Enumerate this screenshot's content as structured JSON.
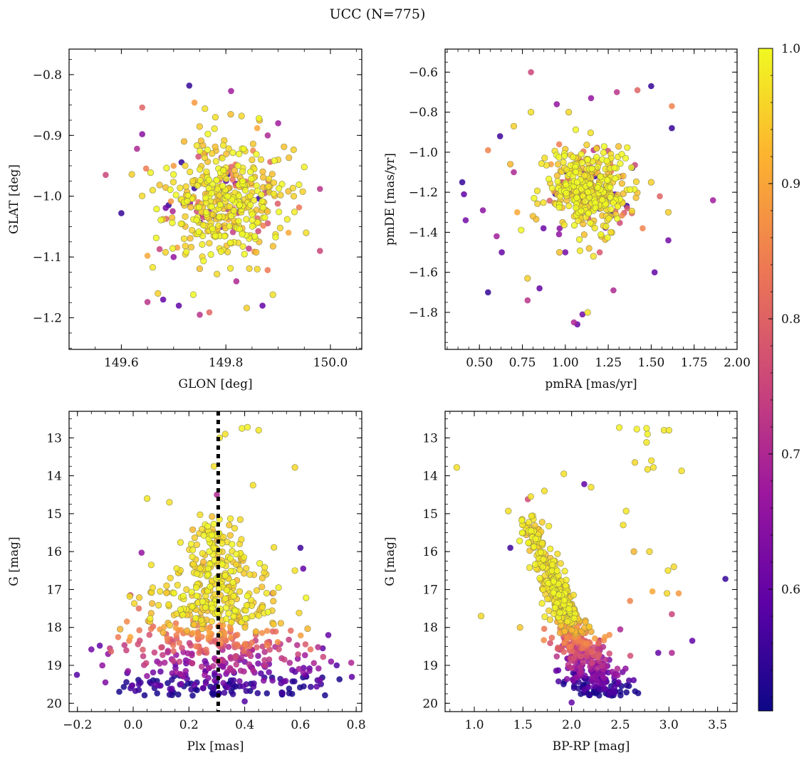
{
  "figure": {
    "title": "UCC (N=775)"
  },
  "colorbar": {
    "range": [
      0.51,
      1.0
    ],
    "ticks": [
      0.6,
      0.7,
      0.8,
      0.9,
      1.0
    ],
    "tick_labels": [
      "0.6",
      "0.7",
      "0.8",
      "0.9",
      "1.0"
    ],
    "colormap": "plasma",
    "colors": [
      "#0d0887",
      "#5c01a6",
      "#9c179e",
      "#cc4778",
      "#ed7953",
      "#fdb42f",
      "#f0f921"
    ]
  },
  "chart_data": [
    {
      "type": "scatter",
      "xlabel": "GLON [deg]",
      "ylabel": "GLAT [deg]",
      "xlim": [
        149.5,
        150.06
      ],
      "ylim": [
        -1.252,
        -0.758
      ],
      "y_inverted": false,
      "xticks": [
        149.6,
        149.8,
        150.0
      ],
      "xtick_labels": [
        "149.6",
        "149.8",
        "150.0"
      ],
      "yticks": [
        -1.2,
        -1.1,
        -1.0,
        -0.9,
        -0.8
      ],
      "ytick_labels": [
        "−1.2",
        "−1.1",
        "−1.0",
        "−0.9",
        "−0.8"
      ],
      "points": [
        [
          149.57,
          -0.965,
          0.75
        ],
        [
          149.6,
          -1.028,
          0.55
        ],
        [
          149.63,
          -0.922,
          0.7
        ],
        [
          149.64,
          -0.854,
          0.8
        ],
        [
          149.64,
          -0.898,
          0.65
        ],
        [
          149.65,
          -1.098,
          0.9
        ],
        [
          149.65,
          -1.174,
          0.72
        ],
        [
          149.66,
          -1.117,
          0.98
        ],
        [
          149.67,
          -1.16,
          0.95
        ],
        [
          149.71,
          -1.18,
          0.6
        ],
        [
          149.73,
          -0.818,
          0.55
        ],
        [
          149.74,
          -0.846,
          0.88
        ],
        [
          149.76,
          -0.856,
          0.97
        ],
        [
          149.81,
          -0.827,
          0.68
        ],
        [
          149.83,
          -0.868,
          0.96
        ],
        [
          149.86,
          -0.888,
          0.9
        ],
        [
          149.88,
          -0.9,
          0.7
        ],
        [
          149.95,
          -0.952,
          0.99
        ],
        [
          149.98,
          -0.988,
          0.72
        ],
        [
          149.98,
          -1.09,
          0.75
        ],
        [
          149.89,
          -1.162,
          0.97
        ],
        [
          149.87,
          -1.18,
          0.6
        ],
        [
          149.84,
          -1.184,
          0.95
        ],
        [
          149.75,
          -1.195,
          0.72
        ],
        [
          149.68,
          -1.17,
          0.6
        ],
        [
          149.62,
          -0.964,
          0.95
        ],
        [
          149.66,
          -0.99,
          0.97
        ],
        [
          149.68,
          -1.038,
          0.94
        ],
        [
          149.72,
          -0.91,
          0.92
        ],
        [
          149.76,
          -0.93,
          0.8
        ],
        [
          149.93,
          -1.0,
          0.95
        ],
        [
          149.9,
          -0.94,
          0.96
        ],
        [
          149.92,
          -1.06,
          0.9
        ],
        [
          149.7,
          -1.1,
          0.66
        ],
        [
          149.72,
          -1.07,
          0.97
        ],
        [
          149.86,
          -1.12,
          0.96
        ],
        [
          149.82,
          -1.14,
          0.7
        ],
        [
          149.9,
          -0.88,
          0.68
        ],
        [
          149.78,
          -0.87,
          0.97
        ],
        [
          149.7,
          -0.95,
          0.88
        ]
      ],
      "cluster": {
        "center": [
          149.8,
          -1.01
        ],
        "spread": [
          0.055,
          0.045
        ],
        "n": 420
      }
    },
    {
      "type": "scatter",
      "xlabel": "pmRA [mas/yr]",
      "ylabel": "pmDE [mas/yr]",
      "xlim": [
        0.3,
        2.0
      ],
      "ylim": [
        -1.985,
        -0.485
      ],
      "y_inverted": false,
      "xticks": [
        0.5,
        0.75,
        1.0,
        1.25,
        1.5,
        1.75,
        2.0
      ],
      "xtick_labels": [
        "0.50",
        "0.75",
        "1.00",
        "1.25",
        "1.50",
        "1.75",
        "2.00"
      ],
      "yticks": [
        -1.8,
        -1.6,
        -1.4,
        -1.2,
        -1.0,
        -0.8,
        -0.6
      ],
      "ytick_labels": [
        "−1.8",
        "−1.6",
        "−1.4",
        "−1.2",
        "−1.0",
        "−0.8",
        "−0.6"
      ],
      "points": [
        [
          0.4,
          -1.15,
          0.55
        ],
        [
          0.41,
          -1.21,
          0.6
        ],
        [
          0.42,
          -1.34,
          0.62
        ],
        [
          0.55,
          -1.7,
          0.55
        ],
        [
          0.52,
          -1.29,
          0.65
        ],
        [
          0.55,
          -0.99,
          0.85
        ],
        [
          0.8,
          -0.6,
          0.75
        ],
        [
          1.15,
          -0.73,
          0.66
        ],
        [
          1.3,
          -0.7,
          0.72
        ],
        [
          1.42,
          -0.69,
          0.8
        ],
        [
          1.5,
          -0.67,
          0.55
        ],
        [
          1.62,
          -0.77,
          0.85
        ],
        [
          1.86,
          -1.24,
          0.68
        ],
        [
          1.62,
          -0.88,
          0.55
        ],
        [
          1.52,
          -1.6,
          0.6
        ],
        [
          1.07,
          -1.86,
          0.6
        ],
        [
          1.05,
          -1.85,
          0.7
        ],
        [
          1.13,
          -1.8,
          0.97
        ],
        [
          1.1,
          -1.81,
          0.62
        ],
        [
          0.78,
          -1.74,
          0.72
        ],
        [
          0.85,
          -1.68,
          0.6
        ],
        [
          0.78,
          -1.63,
          0.95
        ],
        [
          0.63,
          -1.5,
          0.6
        ],
        [
          0.6,
          -1.42,
          0.68
        ],
        [
          0.62,
          -0.92,
          0.56
        ],
        [
          0.7,
          -0.87,
          0.95
        ],
        [
          0.8,
          -0.8,
          0.97
        ],
        [
          0.95,
          -0.76,
          0.66
        ],
        [
          1.02,
          -0.8,
          0.96
        ],
        [
          1.28,
          -1.69,
          0.7
        ],
        [
          1.5,
          -1.15,
          0.95
        ],
        [
          1.55,
          -1.22,
          0.8
        ],
        [
          1.6,
          -1.3,
          0.95
        ],
        [
          1.6,
          -1.44,
          0.62
        ],
        [
          1.45,
          -1.38,
          0.85
        ],
        [
          0.72,
          -1.3,
          0.9
        ],
        [
          0.7,
          -1.1,
          0.7
        ],
        [
          0.68,
          -1.06,
          0.92
        ],
        [
          1.0,
          -1.5,
          0.62
        ],
        [
          1.2,
          -1.5,
          0.78
        ]
      ],
      "cluster": {
        "center": [
          1.13,
          -1.19
        ],
        "spread": [
          0.12,
          0.11
        ],
        "n": 420
      }
    },
    {
      "type": "scatter",
      "xlabel": "Plx [mas]",
      "ylabel": "G [mag]",
      "xlim": [
        -0.23,
        0.82
      ],
      "ylim": [
        12.3,
        20.22
      ],
      "y_inverted": true,
      "xticks": [
        -0.2,
        0.0,
        0.2,
        0.4,
        0.6,
        0.8
      ],
      "xtick_labels": [
        "−0.2",
        "0.0",
        "0.2",
        "0.4",
        "0.6",
        "0.8"
      ],
      "yticks": [
        13,
        14,
        15,
        16,
        17,
        18,
        19,
        20
      ],
      "ytick_labels": [
        "13",
        "14",
        "15",
        "16",
        "17",
        "18",
        "19",
        "20"
      ],
      "vline": 0.305,
      "points": [
        [
          0.39,
          12.75,
          0.99
        ],
        [
          0.41,
          12.72,
          0.99
        ],
        [
          0.45,
          12.8,
          0.98
        ],
        [
          0.33,
          12.9,
          0.97
        ],
        [
          0.31,
          13.0,
          0.98
        ],
        [
          0.29,
          13.75,
          0.97
        ],
        [
          0.58,
          13.78,
          0.96
        ],
        [
          0.43,
          14.25,
          0.97
        ],
        [
          0.05,
          14.6,
          0.98
        ],
        [
          0.13,
          14.7,
          0.97
        ],
        [
          0.03,
          16.03,
          0.66
        ],
        [
          0.6,
          15.9,
          0.56
        ],
        [
          0.61,
          16.45,
          0.6
        ],
        [
          0.58,
          16.5,
          0.97
        ],
        [
          0.5,
          17.1,
          0.7
        ],
        [
          0.12,
          16.9,
          0.95
        ],
        [
          -0.15,
          18.58,
          0.62
        ],
        [
          -0.12,
          18.48,
          0.6
        ],
        [
          -0.09,
          18.7,
          0.65
        ],
        [
          0.68,
          18.55,
          0.6
        ],
        [
          0.71,
          18.9,
          0.65
        ],
        [
          0.73,
          19.0,
          0.58
        ],
        [
          0.7,
          18.2,
          0.6
        ],
        [
          0.4,
          19.95,
          0.58
        ],
        [
          0.02,
          19.65,
          0.55
        ],
        [
          -0.01,
          17.15,
          0.75
        ],
        [
          0.02,
          17.5,
          0.82
        ],
        [
          0.3,
          14.5,
          0.7
        ],
        [
          0.25,
          19.6,
          0.6
        ],
        [
          0.5,
          19.4,
          0.62
        ]
      ],
      "cmd": {
        "type": "plx"
      }
    },
    {
      "type": "scatter",
      "xlabel": "BP-RP [mag]",
      "ylabel": "G [mag]",
      "xlim": [
        0.7,
        3.7
      ],
      "ylim": [
        12.3,
        20.22
      ],
      "y_inverted": true,
      "xticks": [
        1.0,
        1.5,
        2.0,
        2.5,
        3.0,
        3.5
      ],
      "xtick_labels": [
        "1.0",
        "1.5",
        "2.0",
        "2.5",
        "3.0",
        "3.5"
      ],
      "yticks": [
        13,
        14,
        15,
        16,
        17,
        18,
        19,
        20
      ],
      "ytick_labels": [
        "13",
        "14",
        "15",
        "16",
        "17",
        "18",
        "19",
        "20"
      ],
      "points": [
        [
          0.82,
          13.78,
          0.97
        ],
        [
          1.07,
          17.7,
          0.96
        ],
        [
          1.35,
          14.93,
          0.97
        ],
        [
          1.37,
          15.9,
          0.56
        ],
        [
          1.47,
          18.0,
          0.94
        ],
        [
          2.13,
          14.22,
          0.6
        ],
        [
          2.2,
          14.3,
          0.97
        ],
        [
          2.49,
          12.73,
          0.99
        ],
        [
          2.67,
          12.77,
          0.99
        ],
        [
          2.77,
          12.75,
          0.99
        ],
        [
          2.78,
          12.9,
          0.99
        ],
        [
          2.77,
          13.12,
          0.98
        ],
        [
          2.95,
          12.8,
          0.98
        ],
        [
          3.0,
          12.8,
          0.98
        ],
        [
          2.82,
          13.6,
          0.97
        ],
        [
          2.84,
          13.78,
          0.97
        ],
        [
          2.78,
          13.83,
          0.97
        ],
        [
          3.13,
          13.87,
          0.97
        ],
        [
          2.65,
          13.65,
          0.96
        ],
        [
          2.56,
          14.93,
          0.98
        ],
        [
          2.53,
          15.3,
          0.97
        ],
        [
          2.64,
          16.0,
          0.92
        ],
        [
          2.8,
          16.0,
          0.96
        ],
        [
          2.99,
          16.5,
          0.97
        ],
        [
          3.05,
          16.4,
          0.96
        ],
        [
          2.83,
          17.05,
          0.9
        ],
        [
          2.98,
          17.1,
          0.96
        ],
        [
          3.1,
          17.1,
          0.88
        ],
        [
          3.03,
          17.65,
          0.75
        ],
        [
          2.89,
          18.67,
          0.6
        ],
        [
          3.03,
          18.67,
          0.7
        ],
        [
          3.24,
          18.35,
          0.6
        ],
        [
          3.58,
          16.72,
          0.55
        ],
        [
          2.0,
          19.98,
          0.6
        ],
        [
          1.92,
          13.95,
          0.97
        ],
        [
          1.58,
          14.55,
          0.97
        ],
        [
          1.72,
          14.4,
          0.97
        ],
        [
          1.55,
          14.62,
          0.76
        ],
        [
          2.6,
          17.3,
          0.85
        ],
        [
          2.5,
          18.05,
          0.7
        ]
      ],
      "cmd": {
        "type": "color"
      }
    }
  ]
}
